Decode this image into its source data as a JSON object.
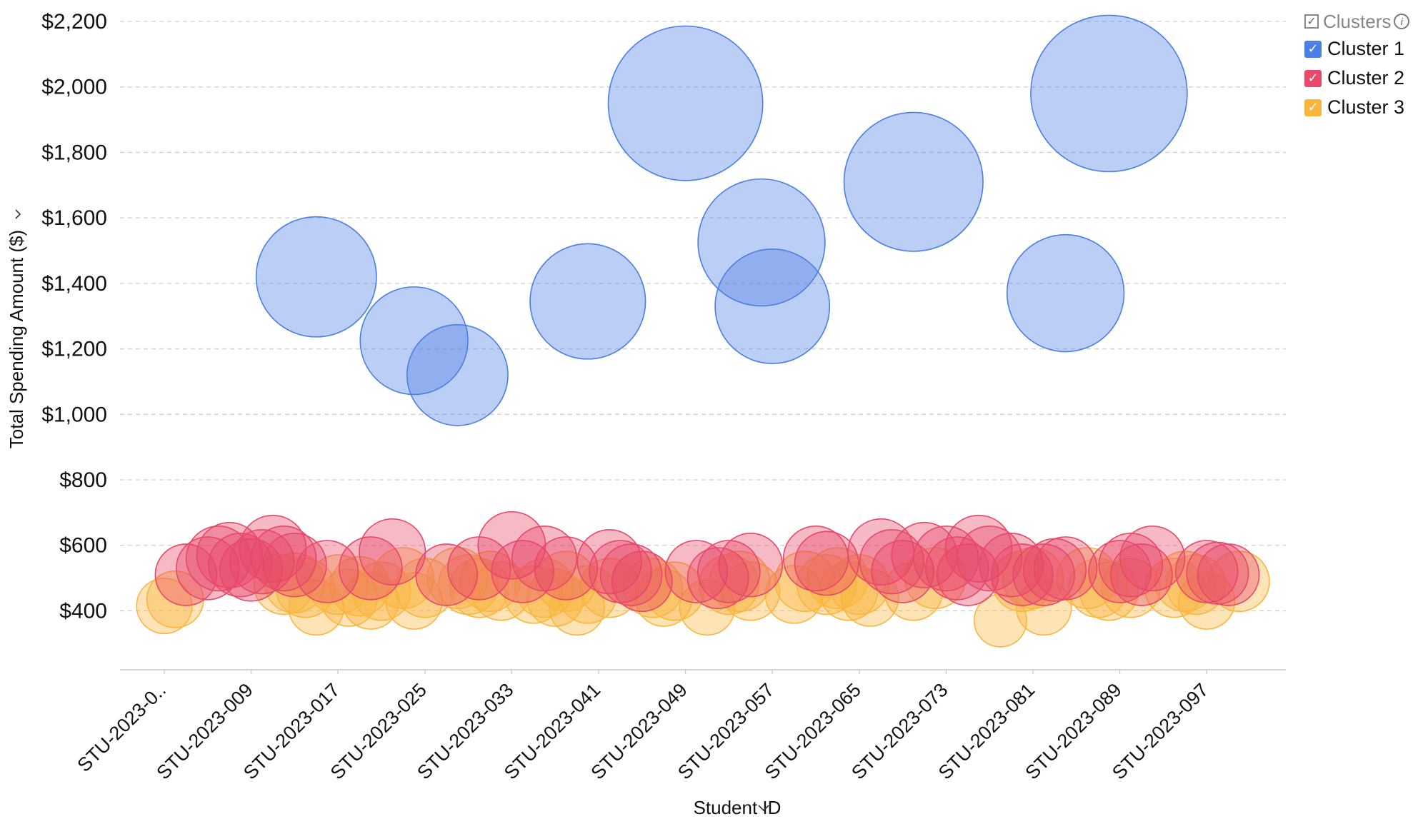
{
  "chart_data": {
    "type": "scatter",
    "subtype": "bubble",
    "title": "",
    "xlabel": "Student ID",
    "ylabel": "Total Spending Amount ($)",
    "ylim": [
      220,
      2200
    ],
    "yticks": [
      400,
      600,
      800,
      1000,
      1200,
      1400,
      1600,
      1800,
      2000,
      2200
    ],
    "ytick_labels": [
      "$400",
      "$600",
      "$800",
      "$1,000",
      "$1,200",
      "$1,400",
      "$1,600",
      "$1,800",
      "$2,000",
      "$2,200"
    ],
    "x_categories_count": 100,
    "xtick_labels": [
      "STU-2023-0..",
      "STU-2023-009",
      "STU-2023-017",
      "STU-2023-025",
      "STU-2023-033",
      "STU-2023-041",
      "STU-2023-049",
      "STU-2023-057",
      "STU-2023-065",
      "STU-2023-073",
      "STU-2023-081",
      "STU-2023-089",
      "STU-2023-097"
    ],
    "grid": true,
    "legend_position": "top-right",
    "legend_title": "Clusters",
    "series": [
      {
        "name": "Cluster 1",
        "color": "#4b7fe5",
        "points": [
          [
            15,
            1420,
            1420
          ],
          [
            24,
            1225,
            1225
          ],
          [
            28,
            1120,
            1120
          ],
          [
            40,
            1345,
            1345
          ],
          [
            49,
            1950,
            1950
          ],
          [
            56,
            1525,
            1525
          ],
          [
            57,
            1330,
            1330
          ],
          [
            70,
            1710,
            1710
          ],
          [
            84,
            1370,
            1370
          ],
          [
            88,
            1980,
            1980
          ]
        ]
      },
      {
        "name": "Cluster 2",
        "color": "#e8486a",
        "points": [
          [
            3,
            510,
            510
          ],
          [
            5,
            530,
            530
          ],
          [
            6,
            560,
            560
          ],
          [
            7,
            570,
            570
          ],
          [
            8,
            540,
            540
          ],
          [
            9,
            525,
            525
          ],
          [
            10,
            550,
            550
          ],
          [
            11,
            590,
            590
          ],
          [
            12,
            560,
            560
          ],
          [
            13,
            540,
            540
          ],
          [
            16,
            520,
            520
          ],
          [
            20,
            530,
            530
          ],
          [
            22,
            580,
            580
          ],
          [
            27,
            510,
            510
          ],
          [
            30,
            530,
            530
          ],
          [
            33,
            600,
            600
          ],
          [
            34,
            520,
            520
          ],
          [
            36,
            560,
            560
          ],
          [
            38,
            530,
            530
          ],
          [
            42,
            550,
            550
          ],
          [
            43,
            520,
            520
          ],
          [
            44,
            510,
            510
          ],
          [
            45,
            490,
            490
          ],
          [
            50,
            520,
            520
          ],
          [
            52,
            500,
            500
          ],
          [
            53,
            520,
            520
          ],
          [
            55,
            540,
            540
          ],
          [
            61,
            560,
            560
          ],
          [
            62,
            545,
            545
          ],
          [
            67,
            580,
            580
          ],
          [
            68,
            550,
            550
          ],
          [
            69,
            520,
            520
          ],
          [
            71,
            570,
            570
          ],
          [
            73,
            560,
            560
          ],
          [
            74,
            530,
            530
          ],
          [
            75,
            510,
            510
          ],
          [
            76,
            590,
            590
          ],
          [
            77,
            560,
            560
          ],
          [
            79,
            540,
            540
          ],
          [
            80,
            510,
            510
          ],
          [
            82,
            510,
            510
          ],
          [
            83,
            525,
            525
          ],
          [
            84,
            530,
            530
          ],
          [
            89,
            520,
            520
          ],
          [
            90,
            540,
            540
          ],
          [
            91,
            510,
            510
          ],
          [
            92,
            560,
            560
          ],
          [
            97,
            520,
            520
          ],
          [
            98,
            515,
            515
          ],
          [
            99,
            510,
            510
          ]
        ]
      },
      {
        "name": "Cluster 3",
        "color": "#fbb53d",
        "points": [
          [
            1,
            415,
            415
          ],
          [
            2,
            435,
            435
          ],
          [
            12,
            480,
            480
          ],
          [
            13,
            485,
            485
          ],
          [
            14,
            470,
            470
          ],
          [
            15,
            410,
            410
          ],
          [
            17,
            480,
            480
          ],
          [
            18,
            440,
            440
          ],
          [
            19,
            475,
            475
          ],
          [
            20,
            430,
            430
          ],
          [
            21,
            460,
            460
          ],
          [
            23,
            500,
            500
          ],
          [
            24,
            430,
            430
          ],
          [
            25,
            470,
            470
          ],
          [
            28,
            500,
            500
          ],
          [
            29,
            480,
            480
          ],
          [
            30,
            470,
            470
          ],
          [
            31,
            490,
            490
          ],
          [
            32,
            460,
            460
          ],
          [
            35,
            450,
            450
          ],
          [
            36,
            470,
            470
          ],
          [
            37,
            440,
            440
          ],
          [
            38,
            490,
            490
          ],
          [
            39,
            410,
            410
          ],
          [
            40,
            450,
            450
          ],
          [
            42,
            470,
            470
          ],
          [
            45,
            490,
            490
          ],
          [
            46,
            470,
            470
          ],
          [
            47,
            440,
            440
          ],
          [
            48,
            460,
            460
          ],
          [
            51,
            410,
            410
          ],
          [
            53,
            480,
            480
          ],
          [
            54,
            490,
            490
          ],
          [
            55,
            460,
            460
          ],
          [
            59,
            450,
            450
          ],
          [
            60,
            490,
            490
          ],
          [
            62,
            480,
            480
          ],
          [
            63,
            500,
            500
          ],
          [
            64,
            460,
            460
          ],
          [
            65,
            480,
            480
          ],
          [
            66,
            440,
            440
          ],
          [
            70,
            460,
            460
          ],
          [
            72,
            500,
            500
          ],
          [
            78,
            370,
            370
          ],
          [
            80,
            490,
            490
          ],
          [
            81,
            500,
            500
          ],
          [
            82,
            410,
            410
          ],
          [
            86,
            500,
            500
          ],
          [
            87,
            470,
            470
          ],
          [
            88,
            460,
            460
          ],
          [
            90,
            470,
            470
          ],
          [
            94,
            470,
            470
          ],
          [
            95,
            490,
            490
          ],
          [
            96,
            480,
            480
          ],
          [
            97,
            430,
            430
          ],
          [
            100,
            490,
            490
          ]
        ]
      }
    ]
  },
  "legend": {
    "title": "Clusters",
    "check": "✓",
    "info": "i",
    "items": [
      {
        "label": "Cluster 1",
        "color": "#4b7fe5"
      },
      {
        "label": "Cluster 2",
        "color": "#e8486a"
      },
      {
        "label": "Cluster 3",
        "color": "#fbb53d"
      }
    ]
  }
}
